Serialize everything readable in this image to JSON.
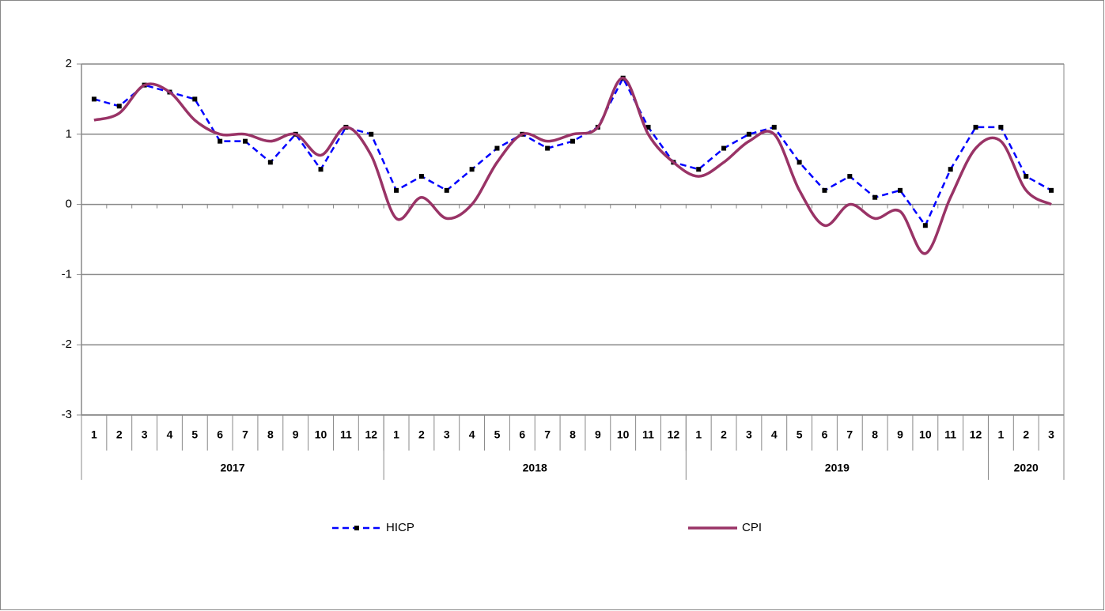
{
  "chart_data": {
    "type": "line",
    "groups": [
      {
        "name": "2017",
        "categories": [
          "1",
          "2",
          "3",
          "4",
          "5",
          "6",
          "7",
          "8",
          "9",
          "10",
          "11",
          "12"
        ]
      },
      {
        "name": "2018",
        "categories": [
          "1",
          "2",
          "3",
          "4",
          "5",
          "6",
          "7",
          "8",
          "9",
          "10",
          "11",
          "12"
        ]
      },
      {
        "name": "2019",
        "categories": [
          "1",
          "2",
          "3",
          "4",
          "5",
          "6",
          "7",
          "8",
          "9",
          "10",
          "11",
          "12"
        ]
      },
      {
        "name": "2020",
        "categories": [
          "1",
          "2",
          "3"
        ]
      }
    ],
    "series": [
      {
        "name": "HICP",
        "color": "#0000ff",
        "style": "dashed",
        "marker": "square",
        "values": [
          1.5,
          1.4,
          1.7,
          1.6,
          1.5,
          0.9,
          0.9,
          0.6,
          1.0,
          0.5,
          1.1,
          1.0,
          0.2,
          0.4,
          0.2,
          0.5,
          0.8,
          1.0,
          0.8,
          0.9,
          1.1,
          1.8,
          1.1,
          0.6,
          0.5,
          0.8,
          1.0,
          1.1,
          0.6,
          0.2,
          0.4,
          0.1,
          0.2,
          -0.3,
          0.5,
          1.1,
          1.1,
          0.4,
          0.2
        ]
      },
      {
        "name": "CPI",
        "color": "#993366",
        "style": "smooth",
        "marker": "none",
        "values": [
          1.2,
          1.3,
          1.7,
          1.6,
          1.2,
          1.0,
          1.0,
          0.9,
          1.0,
          0.7,
          1.1,
          0.7,
          -0.2,
          0.1,
          -0.2,
          0.0,
          0.6,
          1.0,
          0.9,
          1.0,
          1.1,
          1.8,
          1.0,
          0.6,
          0.4,
          0.6,
          0.9,
          1.0,
          0.2,
          -0.3,
          0.0,
          -0.2,
          -0.1,
          -0.7,
          0.1,
          0.8,
          0.9,
          0.2,
          0.0
        ]
      }
    ],
    "ylim": [
      -3,
      2
    ],
    "yticks": [
      -3,
      -2,
      -1,
      0,
      1,
      2
    ],
    "grid": true,
    "legend": "bottom"
  }
}
